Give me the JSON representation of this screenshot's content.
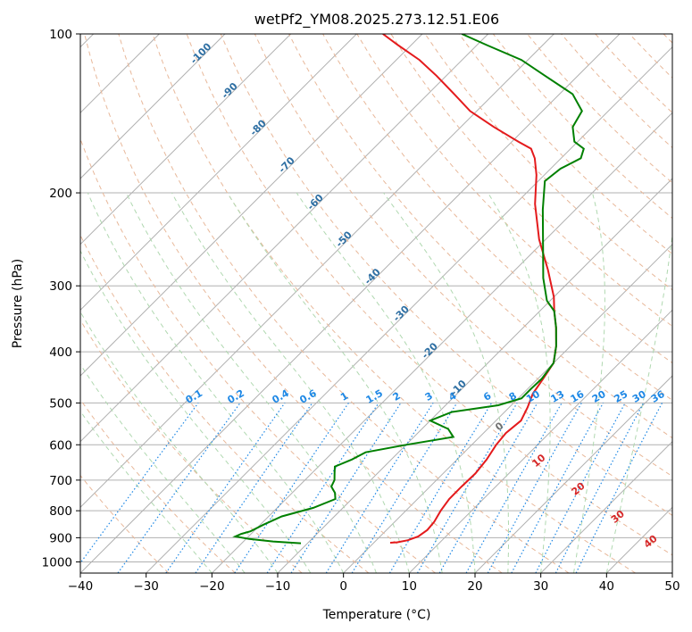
{
  "chart_data": {
    "type": "line",
    "title": "wetPf2_YM08.2025.273.12.51.E06",
    "xlabel": "Temperature (°C)",
    "ylabel": "Pressure (hPa)",
    "x_axis": {
      "scale": "skew-T",
      "xlim": [
        -40,
        50
      ],
      "ticks": [
        -40,
        -30,
        -20,
        -10,
        0,
        10,
        20,
        30,
        40,
        50
      ]
    },
    "y_axis": {
      "scale": "log",
      "ylim": [
        1050,
        100
      ],
      "inverted": true,
      "ticks": [
        100,
        200,
        300,
        400,
        500,
        600,
        700,
        800,
        900,
        1000
      ]
    },
    "grid": true,
    "legend": "none",
    "series": [
      {
        "color": "#e41a1c",
        "x_unit": "°C",
        "y_unit": "hPa",
        "points": [
          [
            2.5,
            920
          ],
          [
            3.5,
            918
          ],
          [
            4.8,
            910
          ],
          [
            5.8,
            895
          ],
          [
            6.2,
            870
          ],
          [
            6.0,
            840
          ],
          [
            5.3,
            800
          ],
          [
            4.8,
            760
          ],
          [
            4.8,
            720
          ],
          [
            4.9,
            680
          ],
          [
            4.5,
            640
          ],
          [
            3.7,
            600
          ],
          [
            3.4,
            570
          ],
          [
            3.8,
            540
          ],
          [
            2.8,
            510
          ],
          [
            1.5,
            480
          ],
          [
            0.8,
            450
          ],
          [
            0.0,
            420
          ],
          [
            -2.2,
            390
          ],
          [
            -5.0,
            360
          ],
          [
            -7.8,
            335
          ],
          [
            -10.0,
            315
          ],
          [
            -15.0,
            280
          ],
          [
            -21.0,
            245
          ],
          [
            -27.0,
            210
          ],
          [
            -31.2,
            185
          ],
          [
            -34.0,
            172
          ],
          [
            -36.0,
            165
          ],
          [
            -39.0,
            160
          ],
          [
            -45.0,
            150
          ],
          [
            -51.0,
            140
          ],
          [
            -56.0,
            130
          ],
          [
            -61.5,
            120
          ],
          [
            -66.5,
            112
          ],
          [
            -72.0,
            105
          ],
          [
            -76.0,
            100
          ]
        ]
      },
      {
        "color": "#008000",
        "x_unit": "°C",
        "y_unit": "hPa",
        "points": [
          [
            -11.0,
            922
          ],
          [
            -15.5,
            915
          ],
          [
            -19.5,
            905
          ],
          [
            -22.0,
            895
          ],
          [
            -21.5,
            885
          ],
          [
            -20.5,
            875
          ],
          [
            -19.5,
            850
          ],
          [
            -18.0,
            820
          ],
          [
            -14.5,
            790
          ],
          [
            -12.5,
            760
          ],
          [
            -13.5,
            740
          ],
          [
            -15.0,
            720
          ],
          [
            -15.5,
            700
          ],
          [
            -16.5,
            680
          ],
          [
            -17.5,
            660
          ],
          [
            -16.0,
            640
          ],
          [
            -15.0,
            620
          ],
          [
            -10.0,
            600
          ],
          [
            -4.0,
            580
          ],
          [
            -6.0,
            560
          ],
          [
            -10.0,
            540
          ],
          [
            -8.0,
            520
          ],
          [
            -2.0,
            505
          ],
          [
            0.5,
            490
          ],
          [
            0.5,
            470
          ],
          [
            0.6,
            450
          ],
          [
            0.0,
            420
          ],
          [
            -2.2,
            390
          ],
          [
            -5.0,
            360
          ],
          [
            -7.8,
            335
          ],
          [
            -10.5,
            320
          ],
          [
            -14.5,
            290
          ],
          [
            -19.0,
            255
          ],
          [
            -25.0,
            215
          ],
          [
            -29.0,
            190
          ],
          [
            -28.5,
            180
          ],
          [
            -27.0,
            172
          ],
          [
            -28.0,
            165
          ],
          [
            -30.5,
            160
          ],
          [
            -33.0,
            150
          ],
          [
            -34.0,
            140
          ],
          [
            -38.0,
            130
          ],
          [
            -45.0,
            120
          ],
          [
            -51.0,
            112
          ],
          [
            -58.5,
            105
          ],
          [
            -64.0,
            100
          ]
        ]
      }
    ],
    "dry_adiabat_color": "#e8b89a",
    "moist_adiabat_color": "#b0d8b0",
    "mixing_ratio_color": "#1e88e5",
    "isotherm_color": "#808080",
    "isotherm_labels": [
      "-100",
      "-90",
      "-80",
      "-70",
      "-60",
      "-50",
      "-40",
      "-30",
      "-20",
      "-10"
    ],
    "mixing_ratio_labels": [
      "0.1",
      "0.2",
      "0.4",
      "0.6",
      "1",
      "1.5",
      "2",
      "3",
      "4",
      "6",
      "8",
      "10",
      "13",
      "16",
      "20",
      "25",
      "30",
      "36"
    ],
    "red_labels": [
      "0",
      "10",
      "20",
      "30",
      "40"
    ]
  }
}
